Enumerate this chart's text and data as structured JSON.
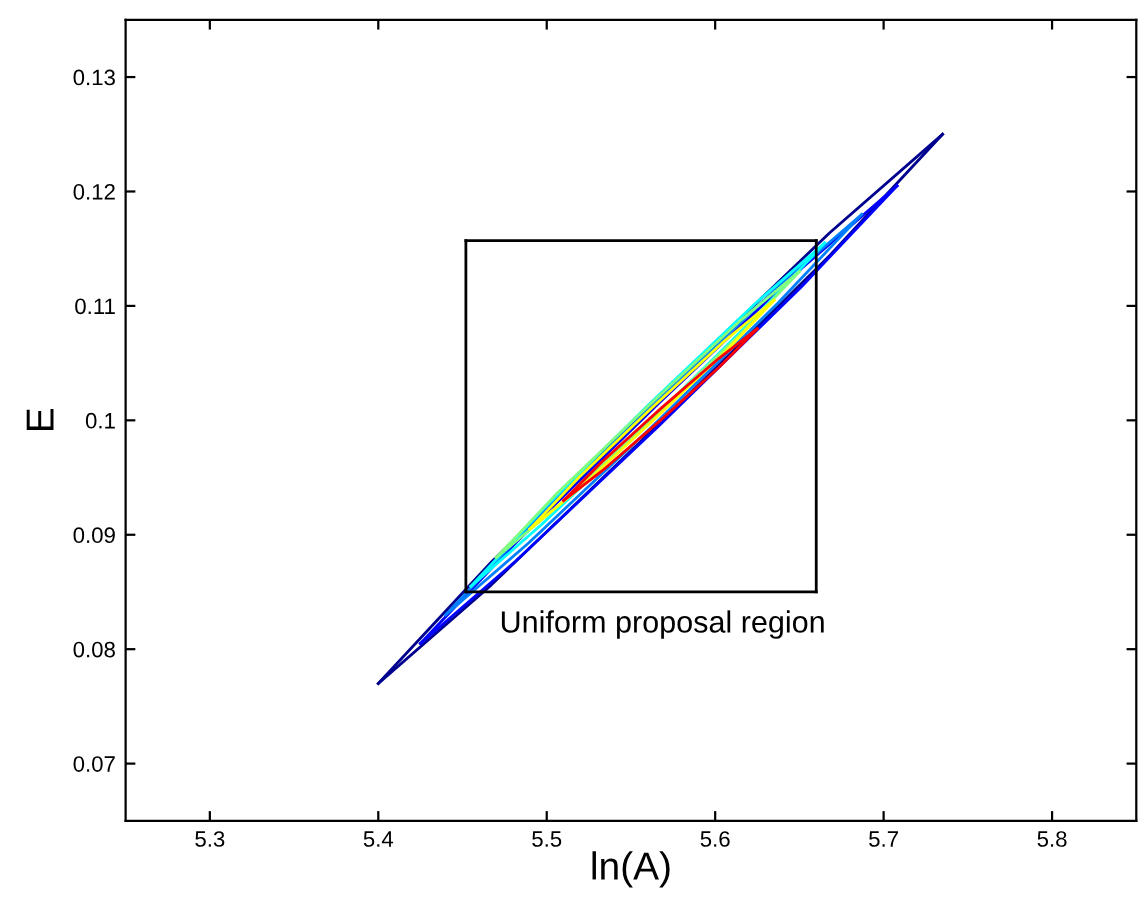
{
  "chart_data": {
    "type": "line",
    "xlabel": "ln(A)",
    "ylabel": "E",
    "xlim": [
      5.25,
      5.85
    ],
    "xticks": [
      5.3,
      5.4,
      5.5,
      5.6,
      5.7,
      5.8
    ],
    "ylim": [
      0.065,
      0.135
    ],
    "yticks": [
      0.07,
      0.08,
      0.09,
      0.1,
      0.11,
      0.12,
      0.13
    ],
    "grid": false,
    "legend": false,
    "marker": "none",
    "line_style": "solid",
    "series": [
      {
        "color": "#00008f",
        "x": [
          5.4,
          5.467,
          5.5675,
          5.668,
          5.735
        ],
        "values": [
          0.077,
          0.0876,
          0.1022,
          0.1164,
          0.125
        ]
      },
      {
        "color": "#00008f",
        "x": [
          5.4,
          5.467,
          5.5675,
          5.668,
          5.735
        ],
        "values": [
          0.077,
          0.0856,
          0.0998,
          0.1144,
          0.125
        ]
      },
      {
        "color": "#0000ff",
        "x": [
          5.425,
          5.4816,
          5.5665,
          5.6514,
          5.708
        ],
        "values": [
          0.0805,
          0.0893,
          0.1015,
          0.1133,
          0.1205
        ]
      },
      {
        "color": "#0000ff",
        "x": [
          5.425,
          5.4816,
          5.5665,
          5.6514,
          5.708
        ],
        "values": [
          0.0805,
          0.0877,
          0.0995,
          0.1117,
          0.1205
        ]
      },
      {
        "color": "#0080ff",
        "x": [
          5.44,
          5.4894,
          5.5635,
          5.6376,
          5.687
        ],
        "values": [
          0.083,
          0.0907,
          0.1014,
          0.1117,
          0.118
        ]
      },
      {
        "color": "#0080ff",
        "x": [
          5.44,
          5.4894,
          5.5635,
          5.6376,
          5.687
        ],
        "values": [
          0.083,
          0.0893,
          0.0996,
          0.1103,
          0.118
        ]
      },
      {
        "color": "#00ffff",
        "x": [
          5.455,
          5.497,
          5.56,
          5.623,
          5.665
        ],
        "values": [
          0.0855,
          0.0921,
          0.1013,
          0.1101,
          0.1155
        ]
      },
      {
        "color": "#00ffff",
        "x": [
          5.455,
          5.497,
          5.56,
          5.623,
          5.665
        ],
        "values": [
          0.0855,
          0.0909,
          0.0997,
          0.1089,
          0.1155
        ]
      },
      {
        "color": "#80ff80",
        "x": [
          5.47,
          5.506,
          5.56,
          5.614,
          5.65
        ],
        "values": [
          0.088,
          0.0936,
          0.1012,
          0.1086,
          0.113
        ]
      },
      {
        "color": "#80ff80",
        "x": [
          5.47,
          5.506,
          5.56,
          5.614,
          5.65
        ],
        "values": [
          0.088,
          0.0924,
          0.0998,
          0.1074,
          0.113
        ]
      },
      {
        "color": "#ffff00",
        "x": [
          5.49,
          5.519,
          5.5625,
          5.606,
          5.635
        ],
        "values": [
          0.0905,
          0.095,
          0.1011,
          0.107,
          0.1105
        ]
      },
      {
        "color": "#ffff00",
        "x": [
          5.49,
          5.519,
          5.5625,
          5.606,
          5.635
        ],
        "values": [
          0.0905,
          0.094,
          0.0999,
          0.106,
          0.1105
        ]
      },
      {
        "color": "#ff0000",
        "x": [
          5.51,
          5.533,
          5.5675,
          5.602,
          5.625
        ],
        "values": [
          0.093,
          0.0964,
          0.101,
          0.1054,
          0.108
        ]
      },
      {
        "color": "#ff0000",
        "x": [
          5.51,
          5.533,
          5.5675,
          5.602,
          5.625
        ],
        "values": [
          0.093,
          0.0956,
          0.1,
          0.1046,
          0.108
        ]
      },
      {
        "color": "#000000",
        "x": [
          5.452,
          5.66
        ],
        "values": [
          0.1157,
          0.1157
        ]
      },
      {
        "color": "#000000",
        "x": [
          5.452,
          5.66
        ],
        "values": [
          0.085,
          0.085
        ]
      },
      {
        "color": "#000000",
        "x": [
          5.452,
          5.452
        ],
        "values": [
          0.085,
          0.1157
        ]
      },
      {
        "color": "#000000",
        "x": [
          5.66,
          5.66
        ],
        "values": [
          0.085,
          0.1157
        ]
      }
    ],
    "annotations": [
      "Uniform proposal region"
    ]
  }
}
